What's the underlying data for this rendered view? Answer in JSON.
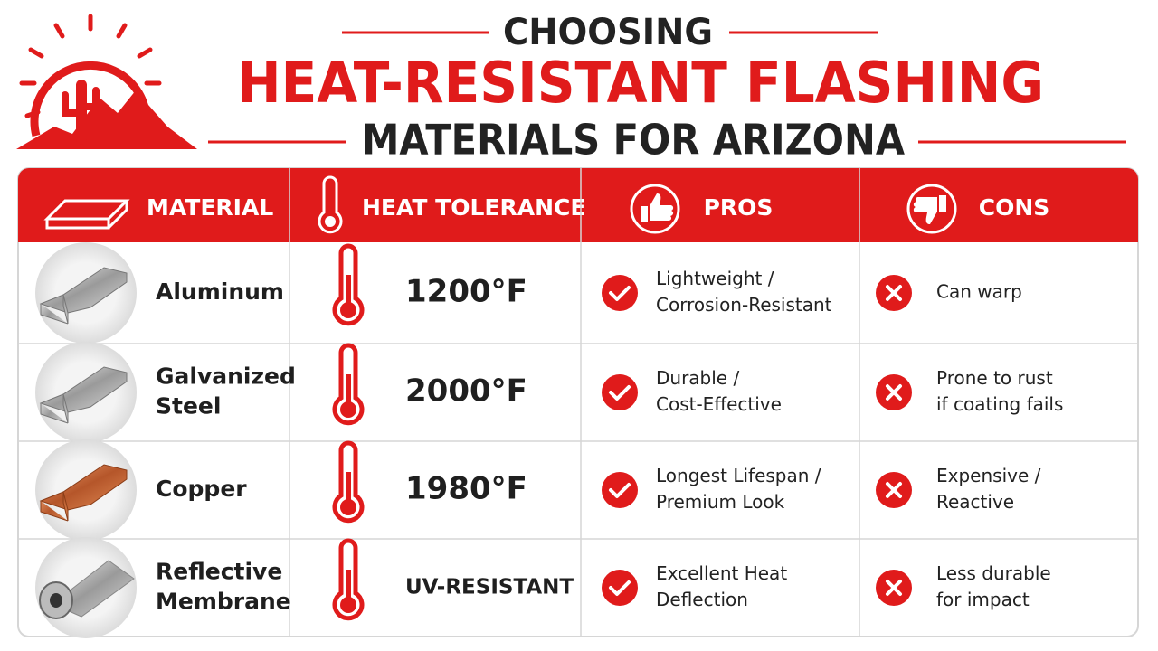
{
  "header": {
    "line1": "CHOOSING",
    "line2": "HEAT-RESISTANT FLASHING",
    "line3": "MATERIALS FOR ARIZONA"
  },
  "table": {
    "columns": [
      "MATERIAL",
      "HEAT TOLERANCE",
      "PROS",
      "CONS"
    ],
    "rows": [
      {
        "material": [
          "Aluminum"
        ],
        "heat": "1200°F",
        "pros": [
          "Lightweight /",
          "Corrosion-Resistant"
        ],
        "cons": [
          "Can warp"
        ]
      },
      {
        "material": [
          "Galvanized",
          "Steel"
        ],
        "heat": "2000°F",
        "pros": [
          "Durable /",
          "Cost-Effective"
        ],
        "cons": [
          "Prone to rust",
          "if coating fails"
        ]
      },
      {
        "material": [
          "Copper"
        ],
        "heat": "1980°F",
        "pros": [
          "Longest Lifespan /",
          "Premium Look"
        ],
        "cons": [
          "Expensive /",
          "Reactive"
        ]
      },
      {
        "material": [
          "Reflective",
          "Membrane"
        ],
        "heat": "UV-RESISTANT",
        "pros": [
          "Excellent Heat",
          "Deflection"
        ],
        "cons": [
          "Less durable",
          "for impact"
        ]
      }
    ]
  }
}
